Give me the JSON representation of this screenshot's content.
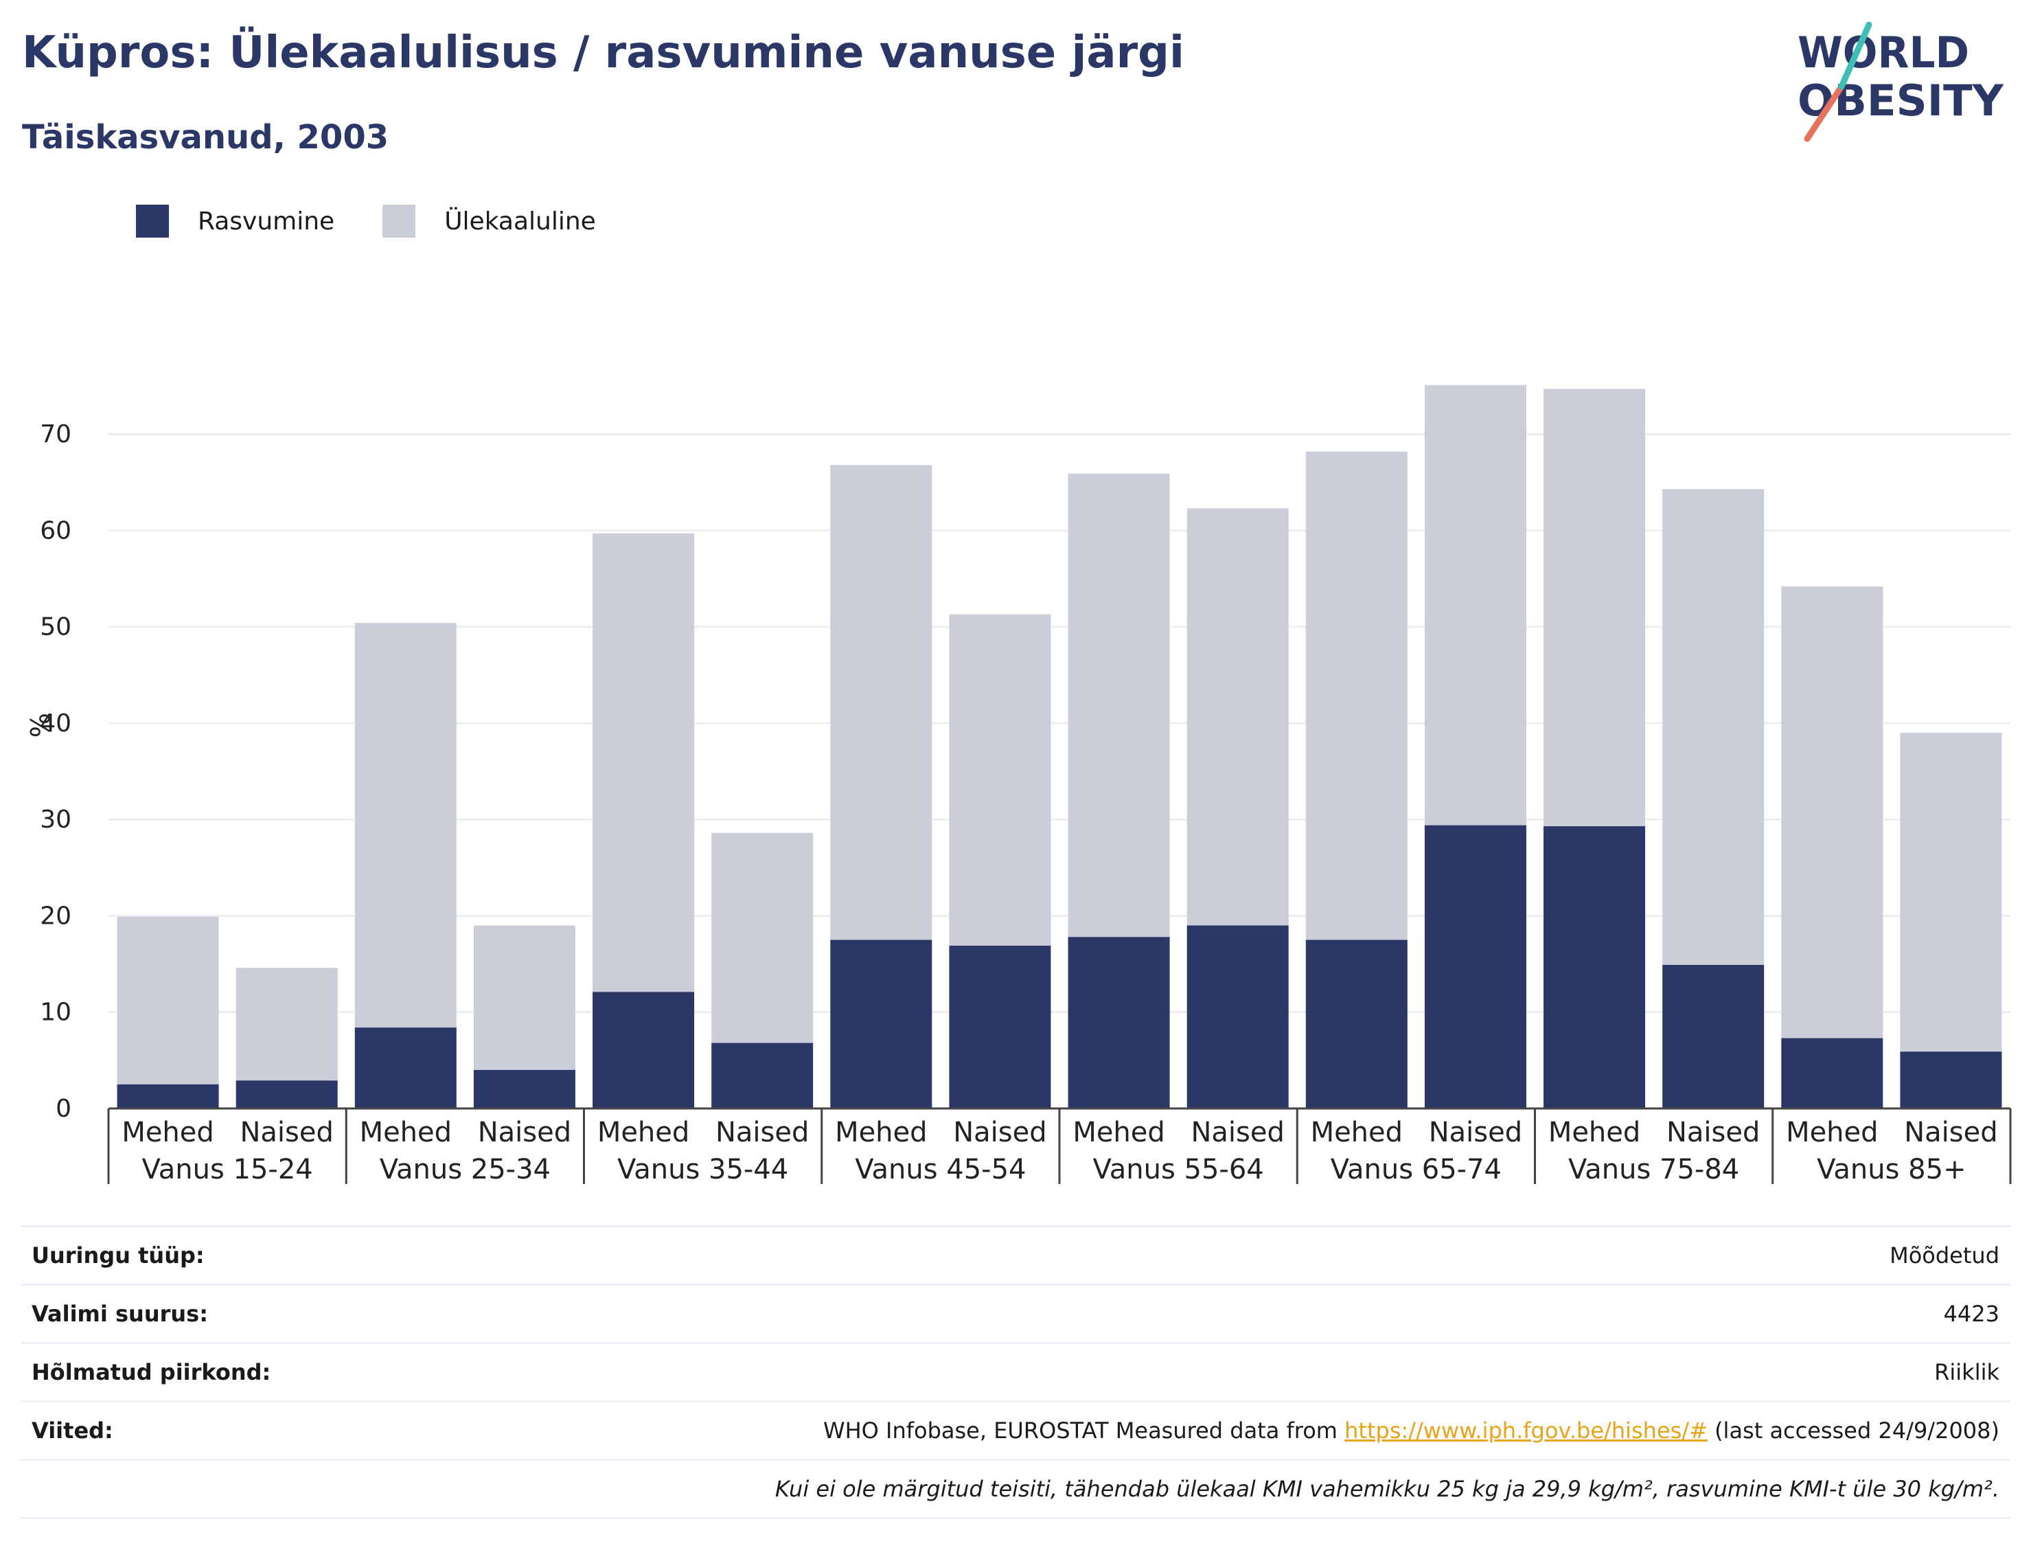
{
  "header": {
    "title": "Küpros: Ülekaalulisus / rasvumine vanuse järgi",
    "subtitle": "Täiskasvanud, 2003"
  },
  "logo": {
    "line1": "WORLD",
    "line2": "OBESITY"
  },
  "legend": [
    {
      "label": "Rasvumine",
      "color": "#2b3766"
    },
    {
      "label": "Ülekaaluline",
      "color": "#cbcdd9"
    }
  ],
  "chart_data": {
    "type": "bar",
    "stacked": true,
    "ylabel": "%",
    "ylim": [
      0,
      78
    ],
    "yticks": [
      0,
      10,
      20,
      30,
      40,
      50,
      60,
      70
    ],
    "grid": true,
    "legend_position": "top-left",
    "groups": [
      "Vanus 15-24",
      "Vanus 25-34",
      "Vanus 35-44",
      "Vanus 45-54",
      "Vanus 55-64",
      "Vanus 65-74",
      "Vanus 75-84",
      "Vanus 85+"
    ],
    "subcategories": [
      "Mehed",
      "Naised"
    ],
    "series": [
      {
        "name": "Rasvumine",
        "color": "#2b3766",
        "values": [
          2.5,
          2.9,
          8.4,
          4.0,
          12.1,
          6.8,
          17.5,
          16.9,
          17.8,
          19.0,
          17.5,
          29.4,
          29.3,
          14.9,
          7.3,
          5.9
        ]
      },
      {
        "name": "Ülekaaluline",
        "color": "#cbcdd9",
        "values": [
          17.4,
          11.7,
          42.0,
          15.0,
          47.6,
          21.8,
          49.3,
          34.4,
          48.1,
          43.3,
          50.7,
          45.7,
          45.4,
          49.4,
          46.9,
          33.1
        ]
      }
    ],
    "totals": [
      19.9,
      14.6,
      50.4,
      19.0,
      59.7,
      28.6,
      66.8,
      51.3,
      65.9,
      62.3,
      68.2,
      75.1,
      74.7,
      64.3,
      54.2,
      39.0
    ]
  },
  "info": {
    "survey_type_label": "Uuringu tüüp:",
    "survey_type_value": "Mõõdetud",
    "sample_size_label": "Valimi suurus:",
    "sample_size_value": "4423",
    "region_label": "Hõlmatud piirkond:",
    "region_value": "Riiklik",
    "references_label": "Viited:",
    "references_prefix": "WHO Infobase, EUROSTAT Measured data from",
    "references_link": "https://www.iph.fgov.be/hishes/#",
    "references_suffix": "(last accessed 24/9/2008)",
    "note": "Kui ei ole märgitud teisiti, tähendab ülekaal KMI vahemikku 25 kg ja 29,9 kg/m², rasvumine KMI-t üle 30 kg/m²."
  }
}
